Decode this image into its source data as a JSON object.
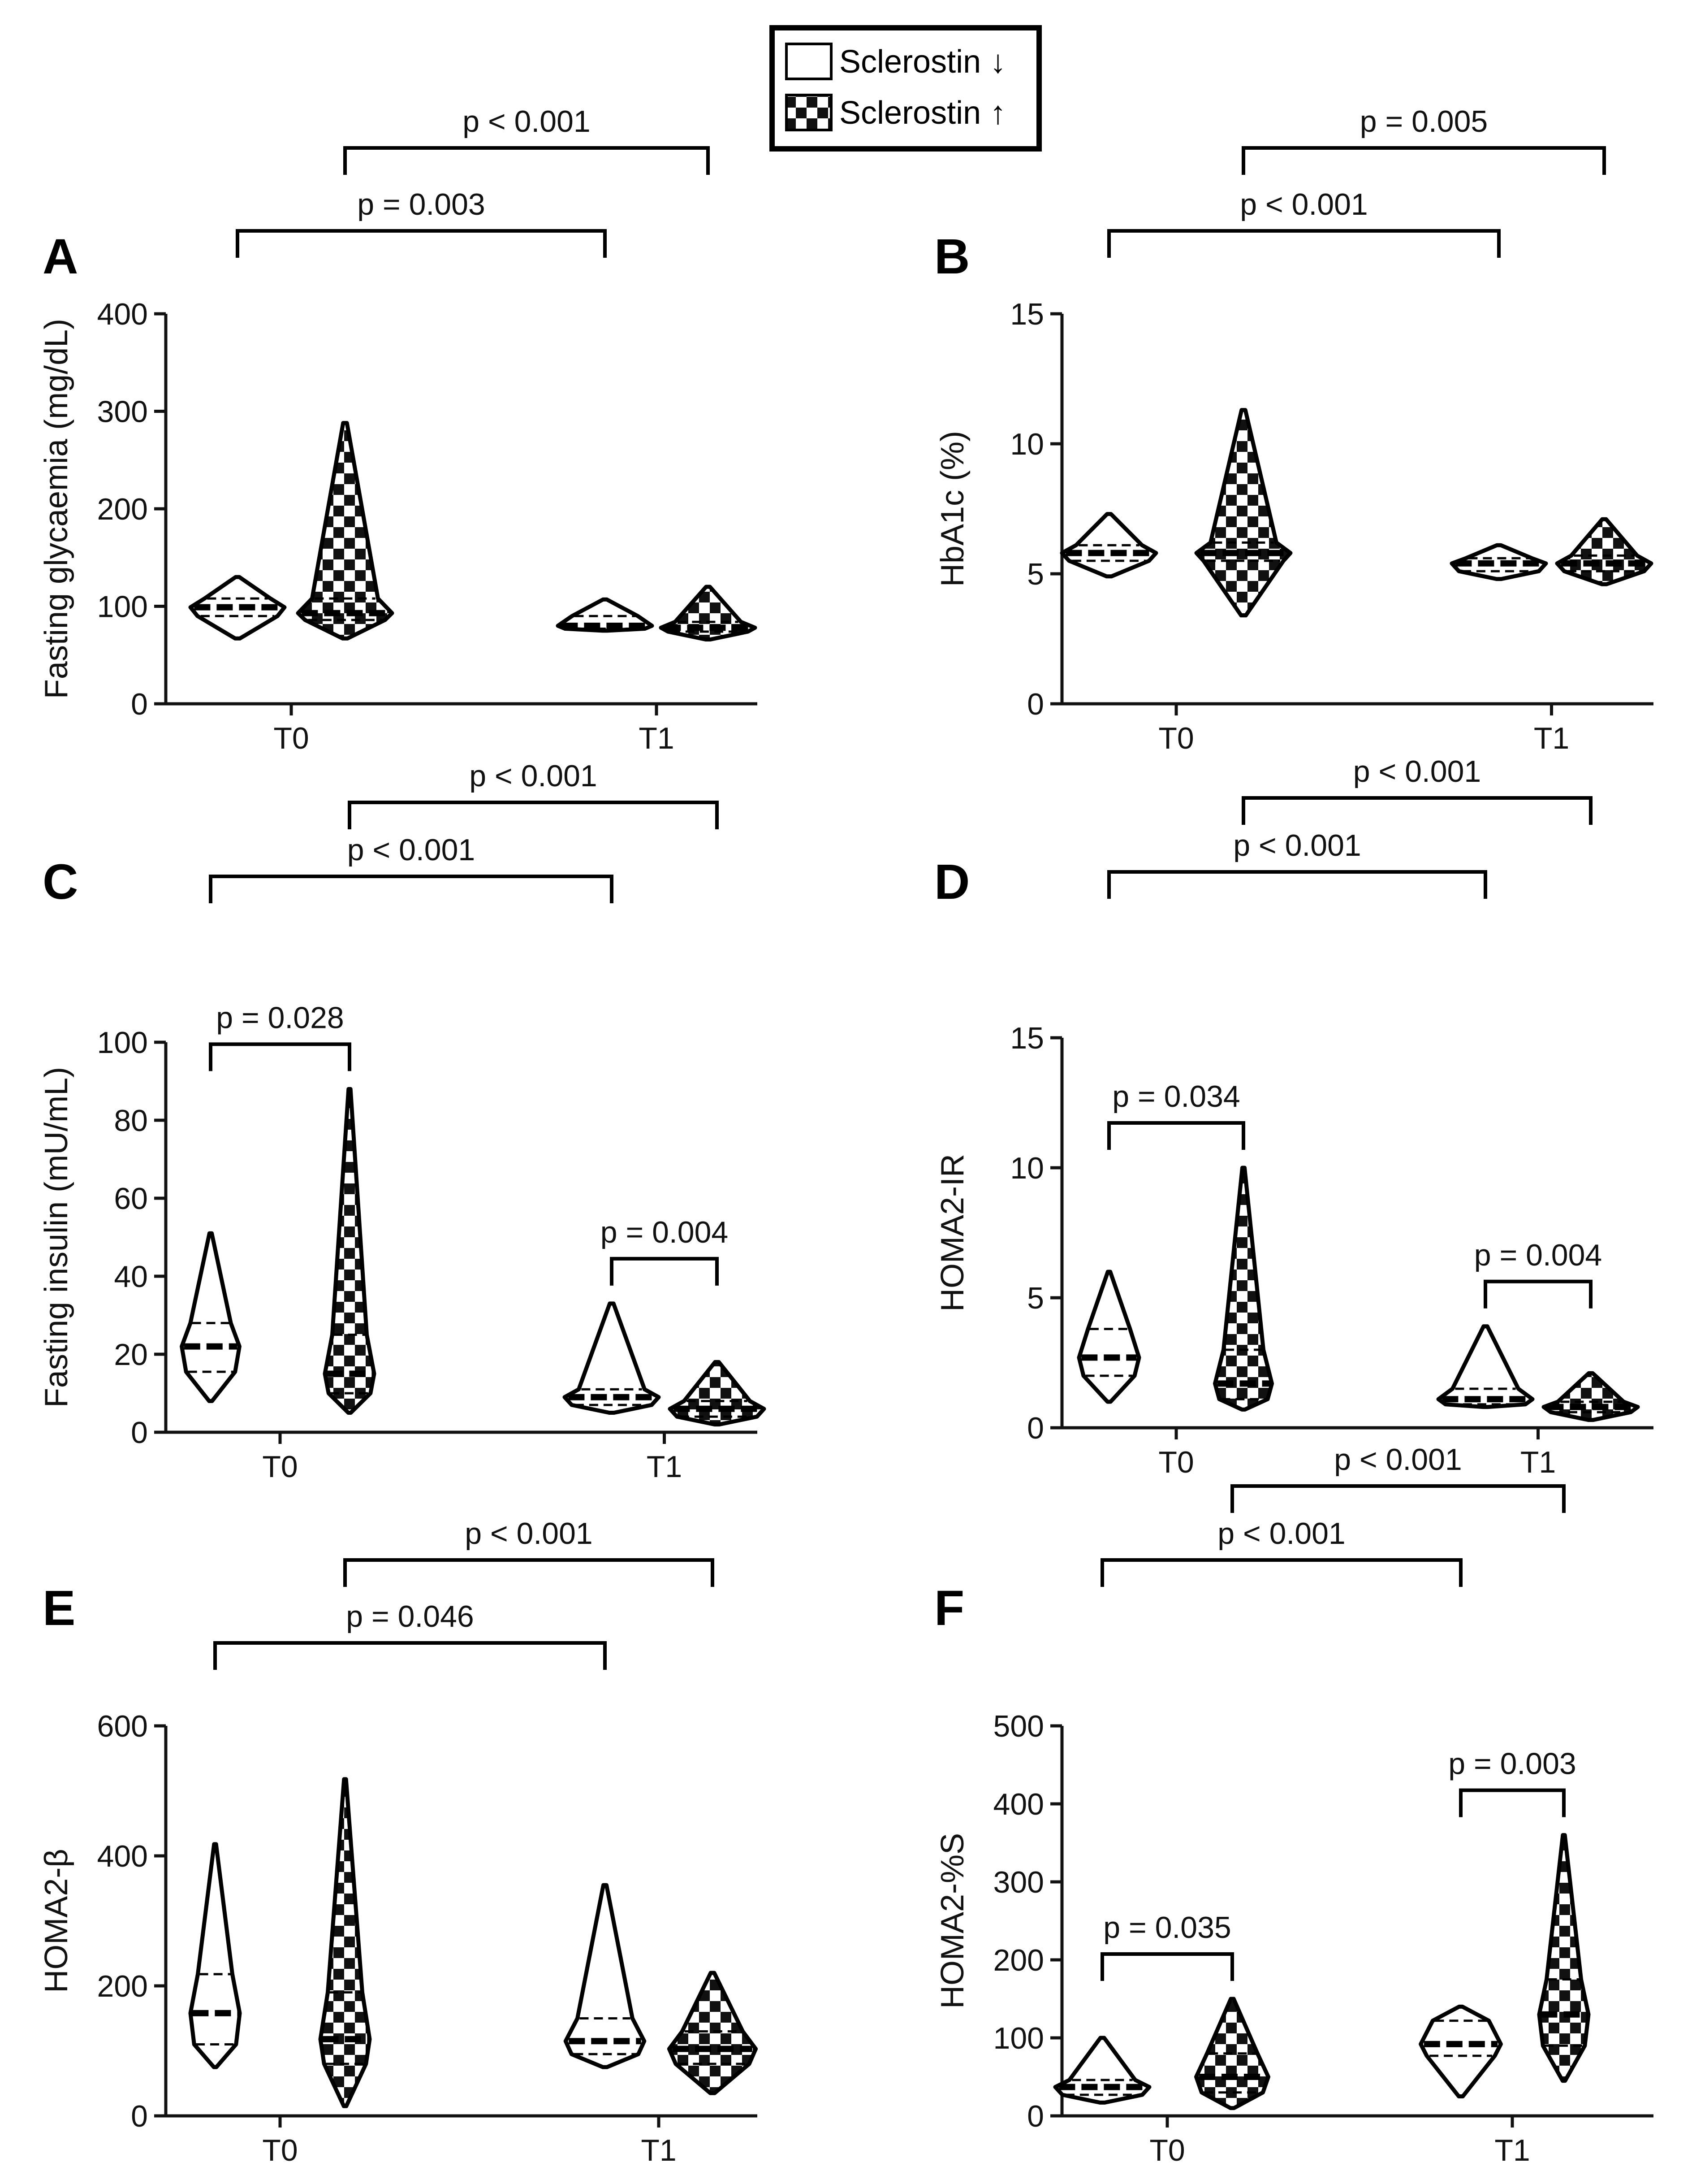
{
  "legend": {
    "items": [
      {
        "label": "Sclerostin ↓",
        "fill": "plain"
      },
      {
        "label": "Sclerostin ↑",
        "fill": "checker"
      }
    ]
  },
  "chart_data": [
    {
      "panel": "A",
      "type": "violin",
      "ylabel": "Fasting glycaemia (mg/dL)",
      "ylim": [
        0,
        400
      ],
      "yticks": [
        0,
        100,
        200,
        300,
        400
      ],
      "categories": [
        "T0",
        "T1"
      ],
      "series": [
        {
          "name": "Sclerostin ↓",
          "fill": "plain",
          "groups": [
            {
              "min": 67,
              "q1": 90,
              "median": 99,
              "q3": 108,
              "max": 130
            },
            {
              "min": 75,
              "q1": 77,
              "median": 80,
              "q3": 90,
              "max": 107
            }
          ]
        },
        {
          "name": "Sclerostin ↑",
          "fill": "checker",
          "groups": [
            {
              "min": 67,
              "q1": 86,
              "median": 93,
              "q3": 108,
              "max": 288
            },
            {
              "min": 66,
              "q1": 74,
              "median": 78,
              "q3": 84,
              "max": 120
            }
          ]
        }
      ],
      "brackets": [
        {
          "label": "p = 0.003",
          "level": 1,
          "from": [
            0,
            0
          ],
          "to": [
            1,
            0
          ]
        },
        {
          "label": "p < 0.001",
          "level": 2,
          "from": [
            0,
            1
          ],
          "to": [
            1,
            1
          ]
        }
      ]
    },
    {
      "panel": "B",
      "type": "violin",
      "ylabel": "HbA1c (%)",
      "ylim": [
        0,
        15
      ],
      "yticks": [
        0,
        5,
        10,
        15
      ],
      "categories": [
        "T0",
        "T1"
      ],
      "series": [
        {
          "name": "Sclerostin ↓",
          "fill": "plain",
          "groups": [
            {
              "min": 4.9,
              "q1": 5.5,
              "median": 5.8,
              "q3": 6.1,
              "max": 7.3
            },
            {
              "min": 4.8,
              "q1": 5.1,
              "median": 5.4,
              "q3": 5.6,
              "max": 6.1
            }
          ]
        },
        {
          "name": "Sclerostin ↑",
          "fill": "checker",
          "groups": [
            {
              "min": 3.4,
              "q1": 5.5,
              "median": 5.8,
              "q3": 6.2,
              "max": 11.3
            },
            {
              "min": 4.6,
              "q1": 5.1,
              "median": 5.4,
              "q3": 5.7,
              "max": 7.1
            }
          ]
        }
      ],
      "brackets": [
        {
          "label": "p < 0.001",
          "level": 1,
          "from": [
            0,
            0
          ],
          "to": [
            1,
            0
          ]
        },
        {
          "label": "p = 0.005",
          "level": 2,
          "from": [
            0,
            1
          ],
          "to": [
            1,
            1
          ]
        }
      ]
    },
    {
      "panel": "C",
      "type": "violin",
      "ylabel": "Fasting insulin (mU/mL)",
      "ylim": [
        0,
        100
      ],
      "yticks": [
        0,
        20,
        40,
        60,
        80,
        100
      ],
      "categories": [
        "T0",
        "T1"
      ],
      "series": [
        {
          "name": "Sclerostin ↓",
          "fill": "plain",
          "groups": [
            {
              "min": 8,
              "q1": 15.5,
              "median": 22,
              "q3": 28,
              "max": 51
            },
            {
              "min": 5,
              "q1": 7,
              "median": 9,
              "q3": 11,
              "max": 33
            }
          ]
        },
        {
          "name": "Sclerostin ↑",
          "fill": "checker",
          "groups": [
            {
              "min": 5,
              "q1": 10,
              "median": 15,
              "q3": 25,
              "max": 88
            },
            {
              "min": 2,
              "q1": 4,
              "median": 6,
              "q3": 8,
              "max": 18
            }
          ]
        }
      ],
      "brackets": [
        {
          "label": "p = 0.028",
          "level": 1,
          "from": [
            0,
            0
          ],
          "to": [
            0,
            1
          ]
        },
        {
          "label": "p < 0.001",
          "level": 2,
          "from": [
            0,
            0
          ],
          "to": [
            1,
            0
          ]
        },
        {
          "label": "p < 0.001",
          "level": 3,
          "from": [
            0,
            1
          ],
          "to": [
            1,
            1
          ]
        },
        {
          "label": "p = 0.004",
          "level": 1,
          "from": [
            1,
            0
          ],
          "to": [
            1,
            1
          ]
        }
      ]
    },
    {
      "panel": "D",
      "type": "violin",
      "ylabel": "HOMA2-IR",
      "ylim": [
        0,
        15
      ],
      "yticks": [
        0,
        5,
        10,
        15
      ],
      "categories": [
        "T0",
        "T1"
      ],
      "series": [
        {
          "name": "Sclerostin ↓",
          "fill": "plain",
          "groups": [
            {
              "min": 1.0,
              "q1": 2.0,
              "median": 2.7,
              "q3": 3.8,
              "max": 6.0
            },
            {
              "min": 0.8,
              "q1": 0.9,
              "median": 1.1,
              "q3": 1.5,
              "max": 3.9
            }
          ]
        },
        {
          "name": "Sclerostin ↑",
          "fill": "checker",
          "groups": [
            {
              "min": 0.7,
              "q1": 1.1,
              "median": 1.7,
              "q3": 3.0,
              "max": 10.0
            },
            {
              "min": 0.3,
              "q1": 0.6,
              "median": 0.8,
              "q3": 1.0,
              "max": 2.1
            }
          ]
        }
      ],
      "brackets": [
        {
          "label": "p = 0.034",
          "level": 1,
          "from": [
            0,
            0
          ],
          "to": [
            0,
            1
          ]
        },
        {
          "label": "p < 0.001",
          "level": 2,
          "from": [
            0,
            0
          ],
          "to": [
            1,
            0
          ]
        },
        {
          "label": "p < 0.001",
          "level": 3,
          "from": [
            0,
            1
          ],
          "to": [
            1,
            1
          ]
        },
        {
          "label": "p = 0.004",
          "level": 1,
          "from": [
            1,
            0
          ],
          "to": [
            1,
            1
          ]
        }
      ]
    },
    {
      "panel": "E",
      "type": "violin",
      "ylabel": "HOMA2-β",
      "ylim": [
        0,
        600
      ],
      "yticks": [
        0,
        200,
        400,
        600
      ],
      "categories": [
        "T0",
        "T1"
      ],
      "series": [
        {
          "name": "Sclerostin ↓",
          "fill": "plain",
          "groups": [
            {
              "min": 75,
              "q1": 110,
              "median": 158,
              "q3": 218,
              "max": 418
            },
            {
              "min": 75,
              "q1": 95,
              "median": 115,
              "q3": 150,
              "max": 355
            }
          ]
        },
        {
          "name": "Sclerostin ↑",
          "fill": "checker",
          "groups": [
            {
              "min": 15,
              "q1": 80,
              "median": 118,
              "q3": 190,
              "max": 518
            },
            {
              "min": 35,
              "q1": 80,
              "median": 103,
              "q3": 130,
              "max": 220
            }
          ]
        }
      ],
      "brackets": [
        {
          "label": "p = 0.046",
          "level": 1,
          "from": [
            0,
            0
          ],
          "to": [
            1,
            0
          ]
        },
        {
          "label": "p < 0.001",
          "level": 2,
          "from": [
            0,
            1
          ],
          "to": [
            1,
            1
          ]
        }
      ]
    },
    {
      "panel": "F",
      "type": "violin",
      "ylabel": "HOMA2-%S",
      "ylim": [
        0,
        500
      ],
      "yticks": [
        0,
        100,
        200,
        300,
        400,
        500
      ],
      "categories": [
        "T0",
        "T1"
      ],
      "series": [
        {
          "name": "Sclerostin ↓",
          "fill": "plain",
          "groups": [
            {
              "min": 17,
              "q1": 27,
              "median": 37,
              "q3": 46,
              "max": 100
            },
            {
              "min": 25,
              "q1": 77,
              "median": 92,
              "q3": 122,
              "max": 140
            }
          ]
        },
        {
          "name": "Sclerostin ↑",
          "fill": "checker",
          "groups": [
            {
              "min": 10,
              "q1": 30,
              "median": 50,
              "q3": 80,
              "max": 150
            },
            {
              "min": 45,
              "q1": 90,
              "median": 130,
              "q3": 175,
              "max": 360
            }
          ]
        }
      ],
      "brackets": [
        {
          "label": "p = 0.035",
          "level": 1,
          "from": [
            0,
            0
          ],
          "to": [
            0,
            1
          ]
        },
        {
          "label": "p < 0.001",
          "level": 2,
          "from": [
            0,
            0
          ],
          "to": [
            1,
            0
          ]
        },
        {
          "label": "p = 0.003",
          "level": 1,
          "from": [
            1,
            0
          ],
          "to": [
            1,
            1
          ]
        },
        {
          "label": "p < 0.001",
          "level": 3,
          "from": [
            0,
            1
          ],
          "to": [
            1,
            1
          ]
        }
      ]
    }
  ]
}
